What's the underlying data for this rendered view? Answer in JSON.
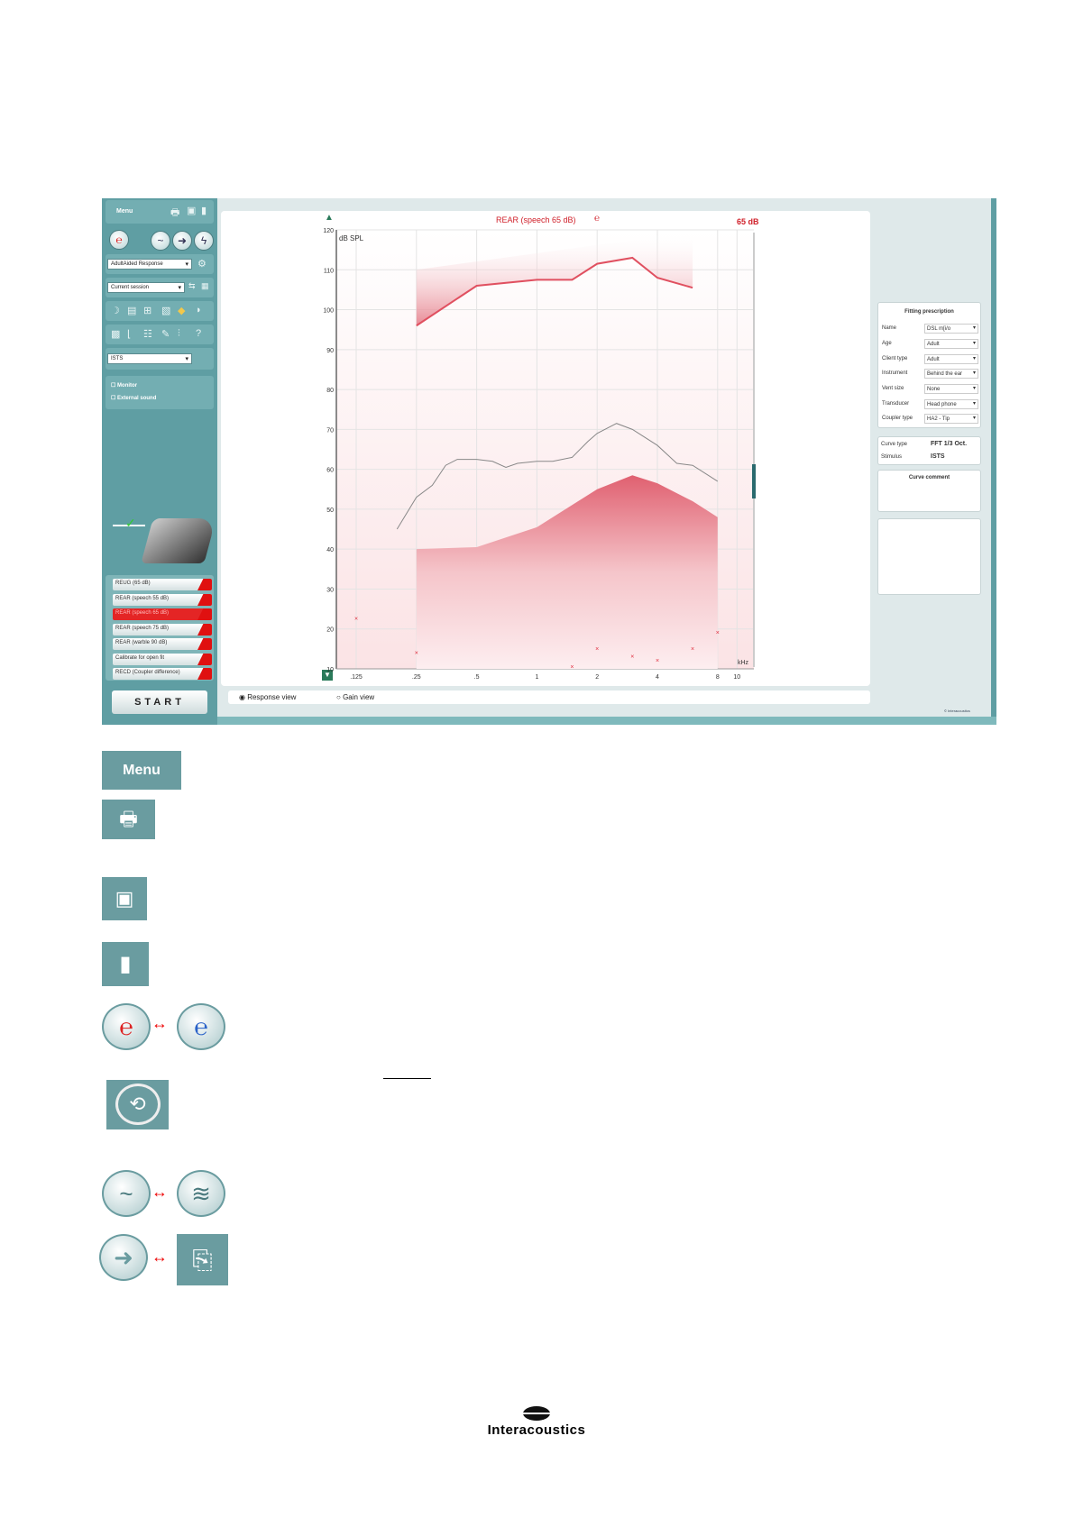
{
  "left_panel": {
    "menu_label": "Menu",
    "protocol": "AdultAided Response",
    "session": "Current session",
    "stimulus": "ISTS",
    "checkboxes": [
      {
        "label": "Monitor",
        "checked": false
      },
      {
        "label": "External sound",
        "checked": false
      }
    ],
    "measurements": [
      {
        "label": "REUG (65 dB)",
        "selected": false
      },
      {
        "label": "REAR (speech 55 dB)",
        "selected": false
      },
      {
        "label": "REAR (speech 65 dB)",
        "selected": true
      },
      {
        "label": "REAR (speech 75 dB)",
        "selected": false
      },
      {
        "label": "REAR (warble 90 dB)",
        "selected": false
      },
      {
        "label": "Calibrate for open fit",
        "selected": false
      },
      {
        "label": "RECD (Coupler difference)",
        "selected": false
      }
    ],
    "start_label": "START"
  },
  "chart_header": {
    "title": "REAR (speech 65 dB)",
    "level": "65 dB"
  },
  "chart_data": {
    "type": "line",
    "title": "REAR (speech 65 dB)",
    "ylabel": "dB SPL",
    "xlabel": "kHz",
    "xscale": "log",
    "xlim": [
      0.1,
      10
    ],
    "ylim": [
      10,
      120
    ],
    "xticks": [
      0.125,
      0.25,
      0.5,
      1,
      2,
      4,
      8,
      10
    ],
    "xtick_labels": [
      ".125",
      ".25",
      ".5",
      "1",
      "2",
      "4",
      "8",
      "10"
    ],
    "yticks": [
      10,
      20,
      30,
      40,
      50,
      60,
      70,
      80,
      90,
      100,
      110,
      120
    ],
    "grid": true,
    "series": [
      {
        "kind": "measured-curve",
        "color": "#888888",
        "x": [
          0.2,
          0.25,
          0.3,
          0.35,
          0.4,
          0.5,
          0.6,
          0.7,
          0.8,
          1,
          1.2,
          1.5,
          1.8,
          2,
          2.5,
          3,
          4,
          5,
          6,
          8
        ],
        "y": [
          45,
          53,
          56,
          61,
          62.5,
          62.5,
          62,
          60.5,
          61.5,
          62,
          62,
          63,
          67,
          69,
          71.5,
          70,
          66,
          61.5,
          61,
          57
        ]
      },
      {
        "kind": "target-upper",
        "color": "#e05060",
        "x": [
          0.25,
          0.5,
          1,
          1.5,
          2,
          3,
          4,
          6
        ],
        "y": [
          96,
          106,
          107.5,
          107.5,
          111.5,
          113,
          108,
          105.5
        ]
      },
      {
        "kind": "target-lower",
        "color": "#e05060",
        "x": [
          0.25,
          0.5,
          1,
          2,
          3,
          4,
          6,
          8
        ],
        "y": [
          40,
          40.5,
          45.5,
          55,
          58.5,
          56.5,
          52,
          48
        ]
      },
      {
        "kind": "threshold-markers",
        "color": "#e03040",
        "x": [
          0.125,
          0.25,
          1.5,
          2,
          3,
          4,
          6,
          8
        ],
        "y": [
          22.5,
          14,
          10.5,
          15,
          13,
          12,
          15,
          19
        ]
      }
    ]
  },
  "view_options": [
    {
      "label": "Response view",
      "selected": true
    },
    {
      "label": "Gain view",
      "selected": false
    }
  ],
  "fitting_prescription": {
    "title": "Fitting prescription",
    "rows": [
      {
        "key": "Name",
        "value": "DSL m[i/o"
      },
      {
        "key": "Age",
        "value": "Adult"
      },
      {
        "key": "Client type",
        "value": "Adult"
      },
      {
        "key": "Instrument",
        "value": "Behind the ear"
      },
      {
        "key": "Vent size",
        "value": "None"
      },
      {
        "key": "Transducer",
        "value": "Head phone"
      },
      {
        "key": "Coupler type",
        "value": "HA2 - Tip"
      }
    ]
  },
  "curve_info": [
    {
      "key": "Curve type",
      "value": "FFT 1/3 Oct."
    },
    {
      "key": "Stimulus",
      "value": "ISTS"
    }
  ],
  "curve_comment_title": "Curve comment",
  "copyright": "© Interacoustics",
  "legend_tiles": {
    "menu_label": "Menu"
  },
  "logo": "Interacoustics",
  "colors": {
    "teal": "#6a9ca0",
    "accent_red": "#e42525",
    "target_pink": "#f6c9cd"
  }
}
